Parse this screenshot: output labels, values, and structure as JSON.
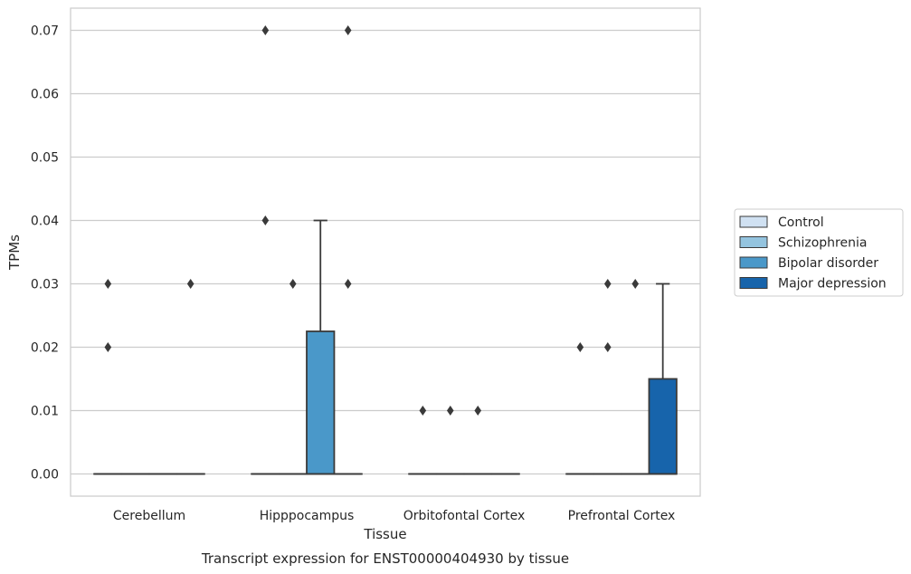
{
  "chart_data": {
    "type": "box",
    "caption": "Transcript expression for ENST00000404930 by tissue",
    "xlabel": "Tissue",
    "ylabel": "TPMs",
    "ylim": [
      -0.0035,
      0.0735
    ],
    "yticks": [
      "0.00",
      "0.01",
      "0.02",
      "0.03",
      "0.04",
      "0.05",
      "0.06",
      "0.07"
    ],
    "ytick_values": [
      0,
      0.01,
      0.02,
      0.03,
      0.04,
      0.05,
      0.06,
      0.07
    ],
    "categories": [
      "Cerebellum",
      "Hipppocampus",
      "Orbitofontal Cortex",
      "Prefrontal Cortex"
    ],
    "grid": "horizontal",
    "legend_position": "right",
    "series": [
      {
        "name": "Control",
        "color": "#d0e1f2",
        "boxes": [
          {
            "q1": 0,
            "median": 0,
            "q3": 0,
            "whisker_low": 0,
            "whisker_high": 0,
            "outliers": [
              0.02,
              0.03
            ]
          },
          {
            "q1": 0,
            "median": 0,
            "q3": 0,
            "whisker_low": 0,
            "whisker_high": 0,
            "outliers": [
              0.04,
              0.07
            ]
          },
          {
            "q1": 0,
            "median": 0,
            "q3": 0,
            "whisker_low": 0,
            "whisker_high": 0,
            "outliers": [
              0.01
            ]
          },
          {
            "q1": 0,
            "median": 0,
            "q3": 0,
            "whisker_low": 0,
            "whisker_high": 0,
            "outliers": [
              0.02
            ]
          }
        ]
      },
      {
        "name": "Schizophrenia",
        "color": "#94c4df",
        "boxes": [
          {
            "q1": 0,
            "median": 0,
            "q3": 0,
            "whisker_low": 0,
            "whisker_high": 0,
            "outliers": []
          },
          {
            "q1": 0,
            "median": 0,
            "q3": 0,
            "whisker_low": 0,
            "whisker_high": 0,
            "outliers": [
              0.03
            ]
          },
          {
            "q1": 0,
            "median": 0,
            "q3": 0,
            "whisker_low": 0,
            "whisker_high": 0,
            "outliers": [
              0.01
            ]
          },
          {
            "q1": 0,
            "median": 0,
            "q3": 0,
            "whisker_low": 0,
            "whisker_high": 0,
            "outliers": [
              0.02,
              0.03
            ]
          }
        ]
      },
      {
        "name": "Bipolar disorder",
        "color": "#4a98c9",
        "boxes": [
          {
            "q1": 0,
            "median": 0,
            "q3": 0,
            "whisker_low": 0,
            "whisker_high": 0,
            "outliers": []
          },
          {
            "q1": 0,
            "median": 0,
            "q3": 0.0225,
            "whisker_low": 0,
            "whisker_high": 0.04,
            "outliers": []
          },
          {
            "q1": 0,
            "median": 0,
            "q3": 0,
            "whisker_low": 0,
            "whisker_high": 0,
            "outliers": [
              0.01
            ]
          },
          {
            "q1": 0,
            "median": 0,
            "q3": 0,
            "whisker_low": 0,
            "whisker_high": 0,
            "outliers": [
              0.03
            ]
          }
        ]
      },
      {
        "name": "Major depression",
        "color": "#1764ab",
        "boxes": [
          {
            "q1": 0,
            "median": 0,
            "q3": 0,
            "whisker_low": 0,
            "whisker_high": 0,
            "outliers": [
              0.03
            ]
          },
          {
            "q1": 0,
            "median": 0,
            "q3": 0,
            "whisker_low": 0,
            "whisker_high": 0,
            "outliers": [
              0.03,
              0.07
            ]
          },
          {
            "q1": 0,
            "median": 0,
            "q3": 0,
            "whisker_low": 0,
            "whisker_high": 0,
            "outliers": []
          },
          {
            "q1": 0,
            "median": 0,
            "q3": 0.015,
            "whisker_low": 0,
            "whisker_high": 0.03,
            "outliers": []
          }
        ]
      }
    ]
  }
}
